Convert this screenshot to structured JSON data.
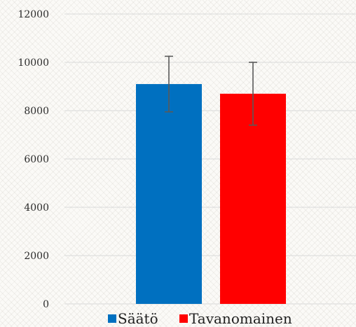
{
  "chart_data": {
    "type": "bar",
    "categories": [
      ""
    ],
    "series": [
      {
        "name": "Säätö",
        "values": [
          9100
        ],
        "error": [
          1150
        ],
        "color": "#0070c0"
      },
      {
        "name": "Tavanomainen",
        "values": [
          8700
        ],
        "error": [
          1300
        ],
        "color": "#ff0000"
      }
    ],
    "ylim": [
      0,
      12000
    ],
    "yticks": [
      0,
      2000,
      4000,
      6000,
      8000,
      10000,
      12000
    ],
    "yticklabels": [
      "0",
      "2000",
      "4000",
      "6000",
      "8000",
      "10000",
      "12000"
    ],
    "grid": true,
    "legend": "bottom",
    "title": "",
    "xlabel": "",
    "ylabel": ""
  }
}
